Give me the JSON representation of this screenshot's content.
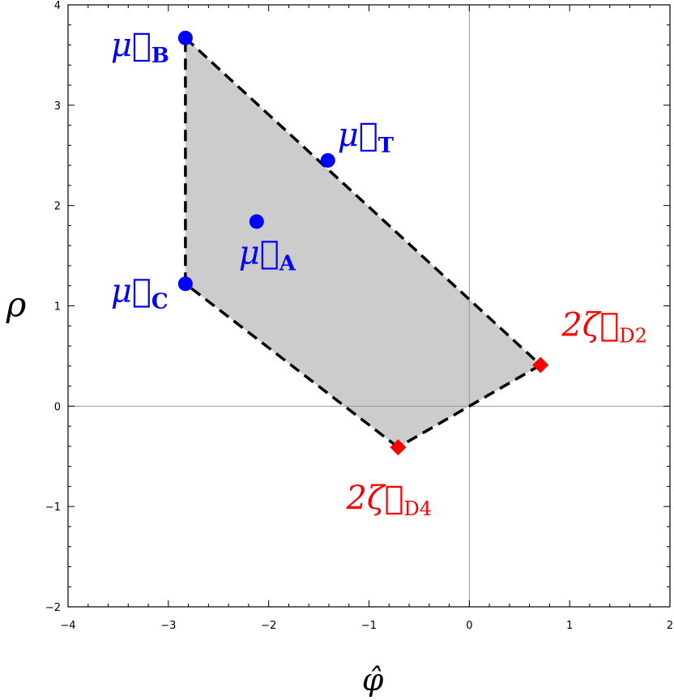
{
  "chart_data": {
    "type": "scatter",
    "xlabel": "φ̂",
    "ylabel": "ρ",
    "xlim": [
      -4,
      2
    ],
    "ylim": [
      -2,
      4
    ],
    "x_ticks": [
      -4,
      -3,
      -2,
      -1,
      0,
      1,
      2
    ],
    "x_tick_labels": [
      "−4",
      "−3",
      "−2",
      "−1",
      "0",
      "1",
      "2"
    ],
    "y_ticks": [
      -2,
      -1,
      0,
      1,
      2,
      3,
      4
    ],
    "y_tick_labels": [
      "−2",
      "−1",
      "0",
      "1",
      "2",
      "3",
      "4"
    ],
    "grid": false,
    "zero_lines": true,
    "region": {
      "fill_color": "#cccccc",
      "edge_color": "#000000",
      "edge_style": "dashed",
      "vertices": [
        {
          "x": -2.83,
          "y": 3.67
        },
        {
          "x": 0.71,
          "y": 0.41
        },
        {
          "x": -0.71,
          "y": -0.41
        },
        {
          "x": -2.83,
          "y": 1.22
        }
      ]
    },
    "series": [
      {
        "marker": "circle",
        "color": "#0000ff",
        "points": [
          {
            "x": -2.83,
            "y": 3.67,
            "label": "μ⃗",
            "sub": "B",
            "label_pos": "left"
          },
          {
            "x": -1.41,
            "y": 2.45,
            "label": "μ⃗",
            "sub": "T",
            "label_pos": "upper-right"
          },
          {
            "x": -2.12,
            "y": 1.84,
            "label": "μ⃗",
            "sub": "A",
            "label_pos": "below"
          },
          {
            "x": -2.83,
            "y": 1.22,
            "label": "μ⃗",
            "sub": "C",
            "label_pos": "left"
          }
        ]
      },
      {
        "marker": "diamond",
        "color": "#ff0000",
        "points": [
          {
            "x": 0.71,
            "y": 0.41,
            "label": "2ζ⃗",
            "sub": "D2",
            "label_pos": "above-right"
          },
          {
            "x": -0.71,
            "y": -0.41,
            "label": "2ζ⃗",
            "sub": "D4",
            "label_pos": "below"
          }
        ]
      }
    ]
  }
}
